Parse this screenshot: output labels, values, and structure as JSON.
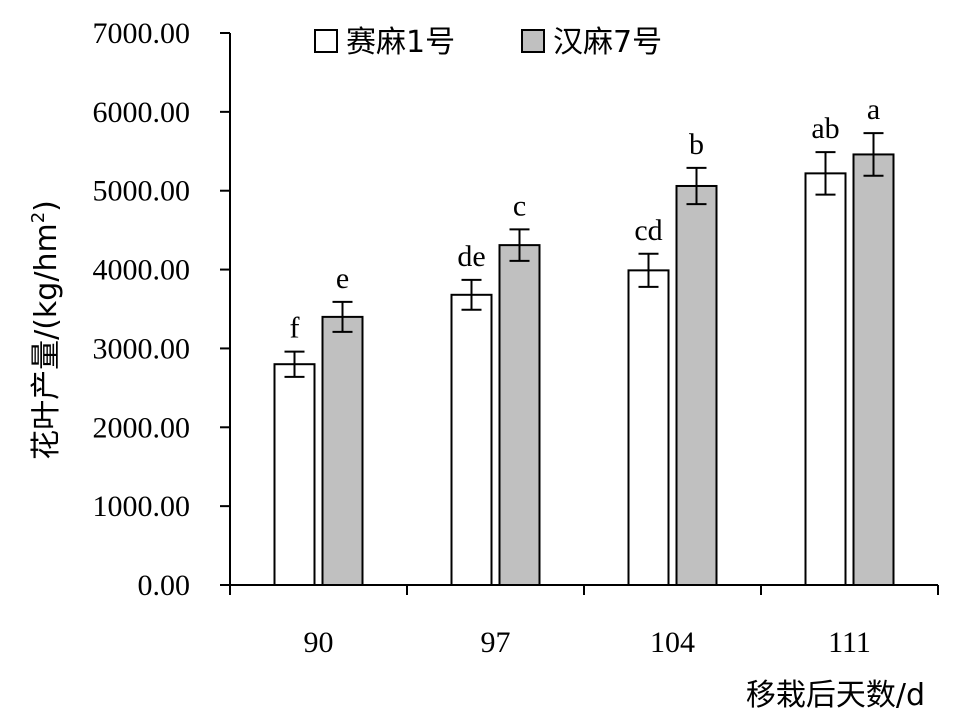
{
  "chart_data": {
    "type": "bar",
    "xlabel": "移栽后天数/d",
    "ylabel_main": "花叶产量/(kg/hm",
    "ylabel_sup": "2",
    "ylabel_end": ")",
    "categories": [
      "90",
      "97",
      "104",
      "111"
    ],
    "ylim": [
      0,
      7000
    ],
    "y_ticks": [
      "0.00",
      "1000.00",
      "2000.00",
      "3000.00",
      "4000.00",
      "5000.00",
      "6000.00",
      "7000.00"
    ],
    "y_tick_values": [
      0,
      1000,
      2000,
      3000,
      4000,
      5000,
      6000,
      7000
    ],
    "legend_position": "top-left",
    "grid": false,
    "series": [
      {
        "name": "赛麻1号",
        "color": "#ffffff",
        "values": [
          2800,
          3680,
          3990,
          5220
        ],
        "errors": [
          160,
          190,
          210,
          270
        ],
        "labels": [
          "f",
          "de",
          "cd",
          "ab"
        ]
      },
      {
        "name": "汉麻7号",
        "color": "#c0c0c0",
        "values": [
          3400,
          4310,
          5060,
          5460
        ],
        "errors": [
          190,
          200,
          230,
          270
        ],
        "labels": [
          "e",
          "c",
          "b",
          "a"
        ]
      }
    ]
  }
}
